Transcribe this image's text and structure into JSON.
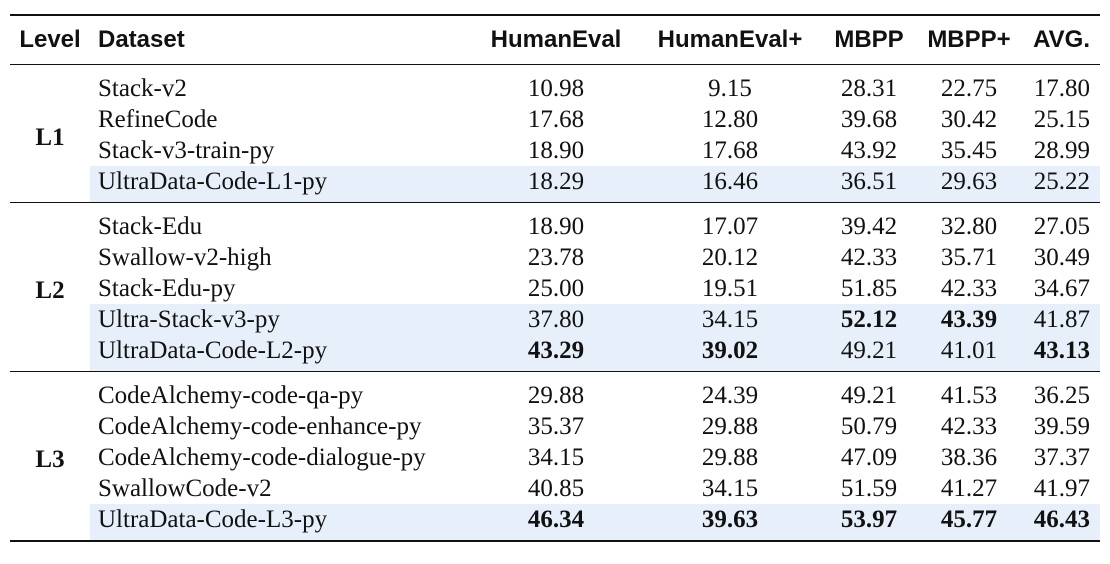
{
  "table": {
    "headers": {
      "level": "Level",
      "dataset": "Dataset",
      "humaneval": "HumanEval",
      "humaneval_plus": "HumanEval+",
      "mbpp": "MBPP",
      "mbpp_plus": "MBPP+",
      "avg": "AVG."
    },
    "groups": [
      {
        "level": "L1",
        "rows": [
          {
            "dataset": "Stack-v2",
            "humaneval": "10.98",
            "humaneval_plus": "9.15",
            "mbpp": "28.31",
            "mbpp_plus": "22.75",
            "avg": "17.80",
            "highlight": false,
            "bold": []
          },
          {
            "dataset": "RefineCode",
            "humaneval": "17.68",
            "humaneval_plus": "12.80",
            "mbpp": "39.68",
            "mbpp_plus": "30.42",
            "avg": "25.15",
            "highlight": false,
            "bold": []
          },
          {
            "dataset": "Stack-v3-train-py",
            "humaneval": "18.90",
            "humaneval_plus": "17.68",
            "mbpp": "43.92",
            "mbpp_plus": "35.45",
            "avg": "28.99",
            "highlight": false,
            "bold": []
          },
          {
            "dataset": "UltraData-Code-L1-py",
            "humaneval": "18.29",
            "humaneval_plus": "16.46",
            "mbpp": "36.51",
            "mbpp_plus": "29.63",
            "avg": "25.22",
            "highlight": true,
            "bold": []
          }
        ]
      },
      {
        "level": "L2",
        "rows": [
          {
            "dataset": "Stack-Edu",
            "humaneval": "18.90",
            "humaneval_plus": "17.07",
            "mbpp": "39.42",
            "mbpp_plus": "32.80",
            "avg": "27.05",
            "highlight": false,
            "bold": []
          },
          {
            "dataset": "Swallow-v2-high",
            "humaneval": "23.78",
            "humaneval_plus": "20.12",
            "mbpp": "42.33",
            "mbpp_plus": "35.71",
            "avg": "30.49",
            "highlight": false,
            "bold": []
          },
          {
            "dataset": "Stack-Edu-py",
            "humaneval": "25.00",
            "humaneval_plus": "19.51",
            "mbpp": "51.85",
            "mbpp_plus": "42.33",
            "avg": "34.67",
            "highlight": false,
            "bold": []
          },
          {
            "dataset": "Ultra-Stack-v3-py",
            "humaneval": "37.80",
            "humaneval_plus": "34.15",
            "mbpp": "52.12",
            "mbpp_plus": "43.39",
            "avg": "41.87",
            "highlight": true,
            "bold": [
              "mbpp",
              "mbpp_plus"
            ]
          },
          {
            "dataset": "UltraData-Code-L2-py",
            "humaneval": "43.29",
            "humaneval_plus": "39.02",
            "mbpp": "49.21",
            "mbpp_plus": "41.01",
            "avg": "43.13",
            "highlight": true,
            "bold": [
              "humaneval",
              "humaneval_plus",
              "avg"
            ]
          }
        ]
      },
      {
        "level": "L3",
        "rows": [
          {
            "dataset": "CodeAlchemy-code-qa-py",
            "humaneval": "29.88",
            "humaneval_plus": "24.39",
            "mbpp": "49.21",
            "mbpp_plus": "41.53",
            "avg": "36.25",
            "highlight": false,
            "bold": []
          },
          {
            "dataset": "CodeAlchemy-code-enhance-py",
            "humaneval": "35.37",
            "humaneval_plus": "29.88",
            "mbpp": "50.79",
            "mbpp_plus": "42.33",
            "avg": "39.59",
            "highlight": false,
            "bold": []
          },
          {
            "dataset": "CodeAlchemy-code-dialogue-py",
            "humaneval": "34.15",
            "humaneval_plus": "29.88",
            "mbpp": "47.09",
            "mbpp_plus": "38.36",
            "avg": "37.37",
            "highlight": false,
            "bold": []
          },
          {
            "dataset": "SwallowCode-v2",
            "humaneval": "40.85",
            "humaneval_plus": "34.15",
            "mbpp": "51.59",
            "mbpp_plus": "41.27",
            "avg": "41.97",
            "highlight": false,
            "bold": []
          },
          {
            "dataset": "UltraData-Code-L3-py",
            "humaneval": "46.34",
            "humaneval_plus": "39.63",
            "mbpp": "53.97",
            "mbpp_plus": "45.77",
            "avg": "46.43",
            "highlight": true,
            "bold": [
              "humaneval",
              "humaneval_plus",
              "mbpp",
              "mbpp_plus",
              "avg"
            ]
          }
        ]
      }
    ],
    "highlight_color": "#e7f0fa"
  }
}
